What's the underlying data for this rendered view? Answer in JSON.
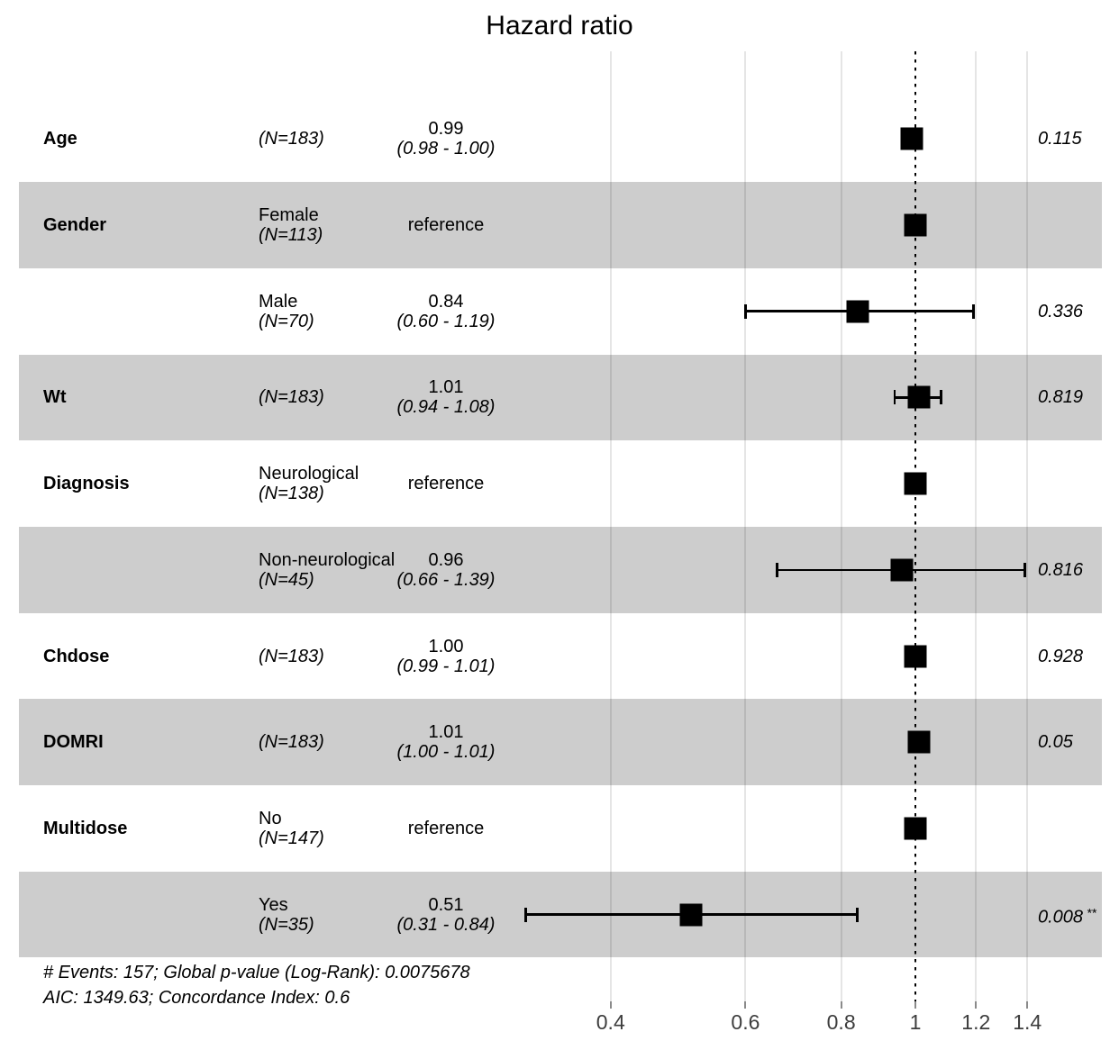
{
  "chart_data": {
    "type": "forest",
    "title": "Hazard ratio",
    "x_scale": "log10",
    "x_ticks": [
      {
        "label": "0.4",
        "value": 0.4
      },
      {
        "label": "0.6",
        "value": 0.6
      },
      {
        "label": "0.8",
        "value": 0.8
      },
      {
        "label": "1",
        "value": 1.0
      },
      {
        "label": "1.2",
        "value": 1.2
      },
      {
        "label": "1.4",
        "value": 1.4
      }
    ],
    "reference_line": 1.0,
    "xlim": [
      0.386,
      1.43
    ],
    "grid": "vertical-major-only",
    "rows": [
      {
        "variable": "Age",
        "level": "",
        "n": "(N=183)",
        "estimate": "0.99",
        "ci": "(0.98 - 1.00)",
        "hr": 0.99,
        "lo": 0.98,
        "hi": 1.0,
        "p": "0.115",
        "stars": "",
        "reference": false,
        "shaded": false
      },
      {
        "variable": "Gender",
        "level": "Female",
        "n": "(N=113)",
        "estimate": "reference",
        "ci": "",
        "hr": 1.0,
        "lo": null,
        "hi": null,
        "p": "",
        "stars": "",
        "reference": true,
        "shaded": true
      },
      {
        "variable": "",
        "level": "Male",
        "n": "(N=70)",
        "estimate": "0.84",
        "ci": "(0.60 - 1.19)",
        "hr": 0.84,
        "lo": 0.6,
        "hi": 1.19,
        "p": "0.336",
        "stars": "",
        "reference": false,
        "shaded": false
      },
      {
        "variable": "Wt",
        "level": "",
        "n": "(N=183)",
        "estimate": "1.01",
        "ci": "(0.94 - 1.08)",
        "hr": 1.01,
        "lo": 0.94,
        "hi": 1.08,
        "p": "0.819",
        "stars": "",
        "reference": false,
        "shaded": true
      },
      {
        "variable": "Diagnosis",
        "level": "Neurological",
        "n": "(N=138)",
        "estimate": "reference",
        "ci": "",
        "hr": 1.0,
        "lo": null,
        "hi": null,
        "p": "",
        "stars": "",
        "reference": true,
        "shaded": false
      },
      {
        "variable": "",
        "level": "Non-neurological",
        "n": "(N=45)",
        "estimate": "0.96",
        "ci": "(0.66 - 1.39)",
        "hr": 0.96,
        "lo": 0.66,
        "hi": 1.39,
        "p": "0.816",
        "stars": "",
        "reference": false,
        "shaded": true
      },
      {
        "variable": "Chdose",
        "level": "",
        "n": "(N=183)",
        "estimate": "1.00",
        "ci": "(0.99 - 1.01)",
        "hr": 1.0,
        "lo": 0.99,
        "hi": 1.01,
        "p": "0.928",
        "stars": "",
        "reference": false,
        "shaded": false
      },
      {
        "variable": "DOMRI",
        "level": "",
        "n": "(N=183)",
        "estimate": "1.01",
        "ci": "(1.00 - 1.01)",
        "hr": 1.01,
        "lo": 1.0,
        "hi": 1.01,
        "p": "0.05",
        "stars": "",
        "reference": false,
        "shaded": true
      },
      {
        "variable": "Multidose",
        "level": "No",
        "n": "(N=147)",
        "estimate": "reference",
        "ci": "",
        "hr": 1.0,
        "lo": null,
        "hi": null,
        "p": "",
        "stars": "",
        "reference": true,
        "shaded": false
      },
      {
        "variable": "",
        "level": "Yes",
        "n": "(N=35)",
        "estimate": "0.51",
        "ci": "(0.31 - 0.84)",
        "hr": 0.51,
        "lo": 0.31,
        "hi": 0.84,
        "p": "0.008",
        "stars": "**",
        "reference": false,
        "shaded": true
      }
    ],
    "footnotes": [
      "# Events: 157; Global p-value (Log-Rank): 0.0075678",
      "AIC: 1349.63; Concordance Index: 0.6"
    ],
    "colors": {
      "marker": "#000000",
      "stripe": "#cdcdcd",
      "tick_label": "#3d3d3d"
    }
  }
}
